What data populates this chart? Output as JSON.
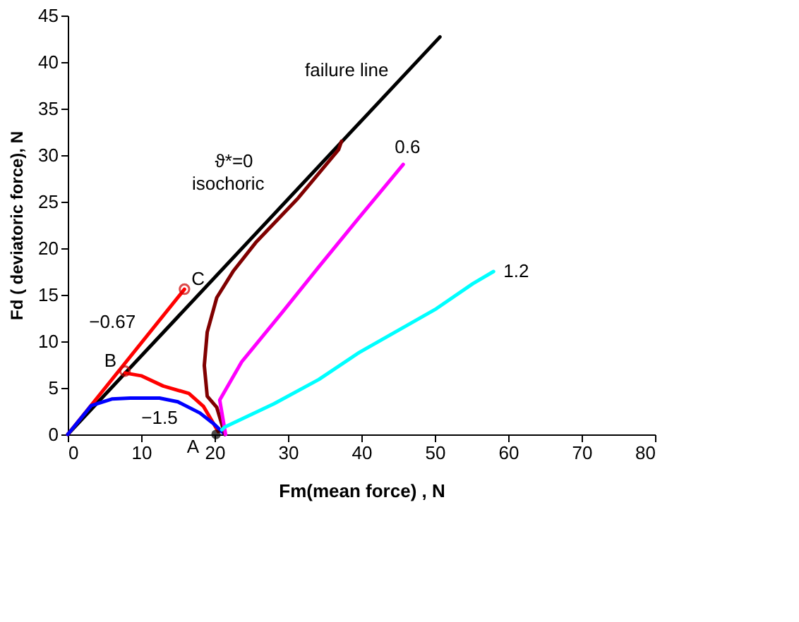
{
  "chart_data": {
    "type": "line",
    "xlabel": "Fm(mean force) , N",
    "ylabel": "Fd ( deviatoric force), N",
    "xlim": [
      0,
      80
    ],
    "xticks": [
      0,
      10,
      20,
      30,
      40,
      50,
      60,
      70,
      80
    ],
    "ylim": [
      0,
      45
    ],
    "yticks": [
      0,
      5,
      10,
      15,
      20,
      25,
      30,
      35,
      40,
      45
    ],
    "line_style": "solid",
    "marker": "none",
    "series": [
      {
        "color": "#000000",
        "x": [
          0,
          50.7
        ],
        "values": [
          0,
          42.7
        ]
      },
      {
        "color": "#ff0000",
        "x": [
          0,
          15.9
        ],
        "values": [
          0,
          15.6
        ]
      },
      {
        "color": "#ff0000",
        "x": [
          20.5,
          18.5,
          16.5,
          13,
          10,
          7.8
        ],
        "values": [
          0.3,
          3.0,
          4.4,
          5.2,
          6.3,
          6.6
        ]
      },
      {
        "color": "#0000ff",
        "x": [
          0,
          3.2,
          6,
          8.5,
          10.4,
          12.5,
          15,
          18,
          19.8,
          21.4
        ],
        "values": [
          0,
          3.1,
          3.8,
          3.9,
          3.9,
          3.9,
          3.5,
          2.3,
          1.2,
          0
        ]
      },
      {
        "color": "#800000",
        "x": [
          21.4,
          20.3,
          19.0,
          18.6,
          19.0,
          20.3,
          22.6,
          25.6,
          31.4,
          36.9,
          37.3
        ],
        "values": [
          0,
          2.9,
          4.1,
          7.4,
          11.0,
          14.7,
          17.6,
          20.6,
          25.4,
          30.6,
          31.5
        ]
      },
      {
        "color": "#ff00ff",
        "x": [
          21.5,
          20.7,
          23.7,
          29.2,
          34.2,
          39.7,
          45.7
        ],
        "values": [
          0,
          3.7,
          7.8,
          13.1,
          18.0,
          23.3,
          29.0
        ]
      },
      {
        "color": "#00ffff",
        "x": [
          21.0,
          21.4,
          28.1,
          34.2,
          39.7,
          50.2,
          55.2,
          58.0
        ],
        "values": [
          0.5,
          0.8,
          3.3,
          5.9,
          8.8,
          13.5,
          16.2,
          17.5
        ]
      },
      {
        "type": "scatter",
        "color": "#000000",
        "marker": "circle",
        "x": [
          20.2
        ],
        "values": [
          0
        ]
      },
      {
        "type": "scatter",
        "color": "#cc0000",
        "marker": "circle",
        "x": [
          7.8,
          15.9
        ],
        "values": [
          6.8,
          15.6
        ]
      }
    ],
    "annotations": [
      {
        "text": "failure line",
        "x": 46.4,
        "y": 39.07
      },
      {
        "text": "ϑ*=0",
        "x": 31.4,
        "y": 25.4
      },
      {
        "text": "isochoric",
        "x": 31.4,
        "y": 25.4
      },
      {
        "text": "0.6",
        "x": 45.7,
        "y": 29.0
      },
      {
        "text": "1.2",
        "x": 58.0,
        "y": 17.5
      },
      {
        "text": "−0.67",
        "x": 10.4,
        "y": 10.2
      },
      {
        "text": "−1.5",
        "x": 12.5,
        "y": 3.9
      },
      {
        "text": "A",
        "x": 20.2,
        "y": 0
      },
      {
        "text": "B",
        "x": 7.8,
        "y": 6.8
      },
      {
        "text": "C",
        "x": 15.9,
        "y": 15.6
      }
    ]
  }
}
